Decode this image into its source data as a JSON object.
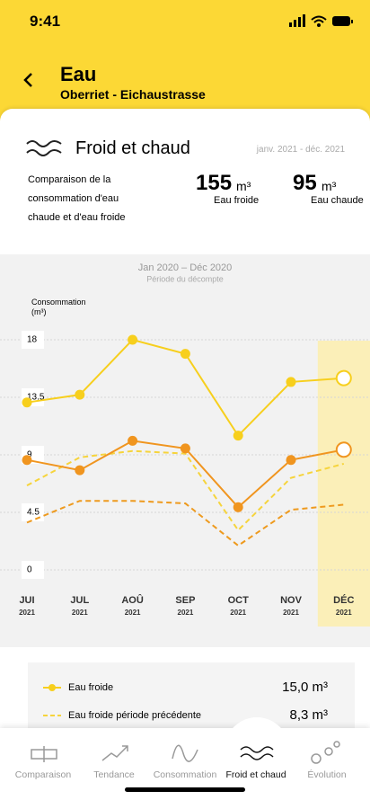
{
  "status_bar": {
    "time": "9:41"
  },
  "header": {
    "title": "Eau",
    "subtitle": "Oberriet - Eichaustrasse"
  },
  "card": {
    "title": "Froid et chaud",
    "date_range": "janv. 2021 - déc. 2021",
    "description": "Comparaison de la consommation d'eau chaude et d'eau froide",
    "stats": [
      {
        "value": "155",
        "unit": "m³",
        "label": "Eau froide"
      },
      {
        "value": "95",
        "unit": "m³",
        "label": "Eau chaude"
      }
    ]
  },
  "chart_data": {
    "type": "line",
    "title": "Jan 2020 – Déc 2020",
    "subtitle": "Période du décompte",
    "y_label": "Consommation (m³)",
    "categories": [
      "JUI",
      "JUL",
      "AOÛ",
      "SEP",
      "OCT",
      "NOV",
      "DÉC"
    ],
    "category_years": [
      "2021",
      "2021",
      "2021",
      "2021",
      "2021",
      "2021",
      "2021"
    ],
    "ylim": [
      0,
      18
    ],
    "yticks": [
      0,
      4.5,
      9,
      13.5,
      18
    ],
    "grid": true,
    "highlight_index": 6,
    "series": [
      {
        "name": "Eau froide",
        "color": "#f7cf1d",
        "dashed": false,
        "markers": true,
        "values": [
          13.1,
          13.7,
          18.0,
          16.9,
          10.5,
          14.7,
          15.0
        ],
        "legend_value": "15,0 m³"
      },
      {
        "color": "#f0951f",
        "dashed": false,
        "markers": true,
        "values": [
          8.6,
          7.8,
          10.1,
          9.5,
          4.9,
          8.6,
          9.4
        ]
      },
      {
        "name": "Eau froide période précédente",
        "color": "#f6d43c",
        "dashed": true,
        "markers": false,
        "values": [
          6.6,
          8.8,
          9.3,
          9.1,
          3.1,
          7.2,
          8.3
        ],
        "legend_value": "8,3 m³"
      },
      {
        "color": "#ee9a1e",
        "dashed": true,
        "markers": false,
        "values": [
          3.7,
          5.4,
          5.4,
          5.2,
          1.9,
          4.7,
          5.1
        ]
      }
    ]
  },
  "tabs": [
    {
      "label": "Comparaison"
    },
    {
      "label": "Tendance"
    },
    {
      "label": "Consommation"
    },
    {
      "label": "Froid et chaud",
      "active": true
    },
    {
      "label": "Évolution"
    }
  ]
}
